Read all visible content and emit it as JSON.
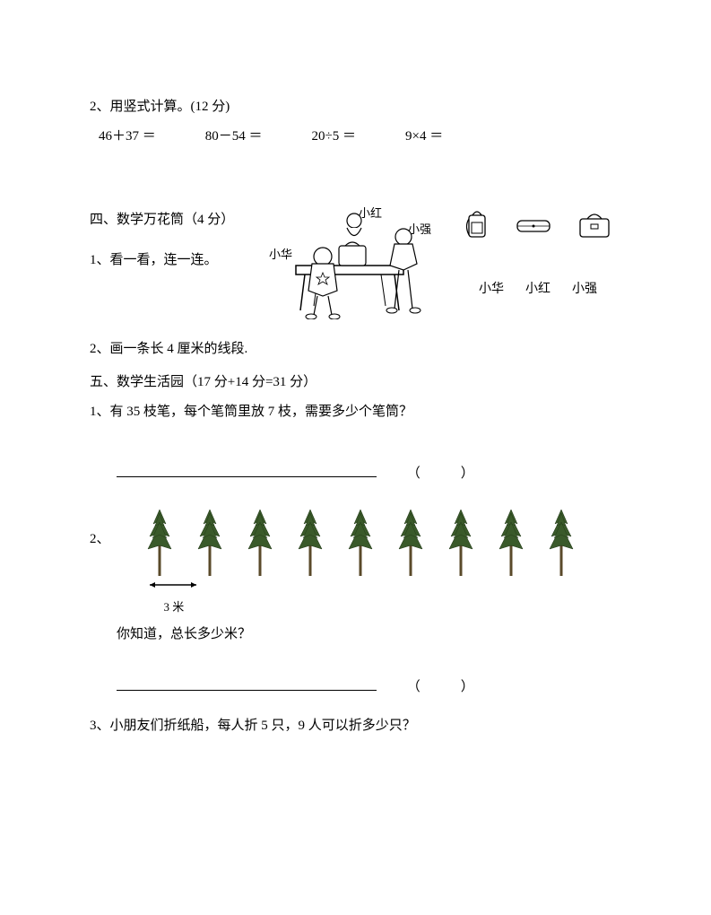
{
  "q2_vertical": {
    "title": "2、用竖式计算。(12 分)",
    "eqs": [
      "46＋37 ＝",
      "80－54 ＝",
      "20÷5 ＝",
      "9×4 ＝"
    ]
  },
  "section4": {
    "title": "四、数学万花筒（4 分）",
    "q1": "1、看一看，连一连。",
    "scene_labels": {
      "hong": "小红",
      "qiang": "小强",
      "hua": "小华"
    },
    "name_row": [
      "小华",
      "小红",
      "小强"
    ]
  },
  "q4_2": "2、画一条长 4 厘米的线段.",
  "section5": {
    "title": "五、数学生活园（17 分+14 分=31 分）",
    "q1": "1、有 35 枝笔，每个笔筒里放 7 枝，需要多少个笔筒？",
    "q2_prefix": "2、",
    "q2_dist": "3 米",
    "q2_ask": "你知道，总长多少米？",
    "q3": "3、小朋友们折纸船，每人折 5 只，9 人可以折多少只？"
  },
  "paren": "（　　　）",
  "tree_color": "#3a5a2a",
  "tree_count": 9
}
